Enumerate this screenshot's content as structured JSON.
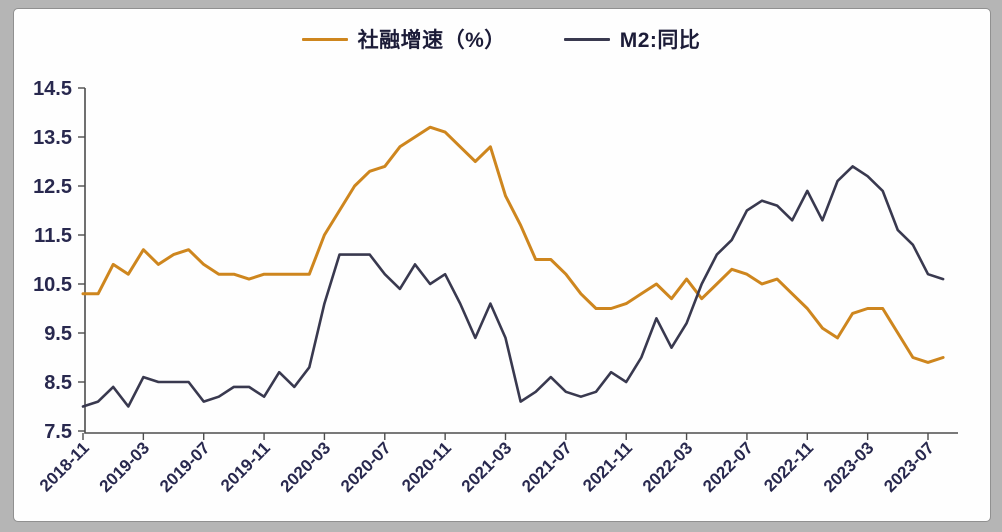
{
  "legend": {
    "items": [
      {
        "label": "社融增速（%）",
        "color": "#ce861e"
      },
      {
        "label": "M2:同比",
        "color": "#39394f"
      }
    ]
  },
  "colors": {
    "axis": "#4d4d4d",
    "tick_label": "#28284e",
    "outer_frame": "#b5b5b5",
    "panel_background": "#fefefe"
  },
  "chart_data": {
    "type": "line",
    "title": "",
    "xlabel": "",
    "ylabel": "",
    "ylim": [
      7.5,
      14.5
    ],
    "y_ticks": [
      7.5,
      8.5,
      9.5,
      10.5,
      11.5,
      12.5,
      13.5,
      14.5
    ],
    "x_tick_step": 4,
    "x_tick_labels": [
      "2018-11",
      "2019-03",
      "2019-07",
      "2019-11",
      "2020-03",
      "2020-07",
      "2020-11",
      "2021-03",
      "2021-07",
      "2021-11",
      "2022-03",
      "2022-07",
      "2022-11",
      "2023-03",
      "2023-07"
    ],
    "grid": false,
    "legend_position": "top-center",
    "x": [
      "2018-11",
      "2018-12",
      "2019-01",
      "2019-02",
      "2019-03",
      "2019-04",
      "2019-05",
      "2019-06",
      "2019-07",
      "2019-08",
      "2019-09",
      "2019-10",
      "2019-11",
      "2019-12",
      "2020-01",
      "2020-02",
      "2020-03",
      "2020-04",
      "2020-05",
      "2020-06",
      "2020-07",
      "2020-08",
      "2020-09",
      "2020-10",
      "2020-11",
      "2020-12",
      "2021-01",
      "2021-02",
      "2021-03",
      "2021-04",
      "2021-05",
      "2021-06",
      "2021-07",
      "2021-08",
      "2021-09",
      "2021-10",
      "2021-11",
      "2021-12",
      "2022-01",
      "2022-02",
      "2022-03",
      "2022-04",
      "2022-05",
      "2022-06",
      "2022-07",
      "2022-08",
      "2022-09",
      "2022-10",
      "2022-11",
      "2022-12",
      "2023-01",
      "2023-02",
      "2023-03",
      "2023-04",
      "2023-05",
      "2023-06",
      "2023-07",
      "2023-08"
    ],
    "series": [
      {
        "name": "社融增速（%）",
        "color": "#ce861e",
        "stroke_width": 3,
        "values": [
          10.3,
          10.3,
          10.9,
          10.7,
          11.2,
          10.9,
          11.1,
          11.2,
          10.9,
          10.7,
          10.7,
          10.6,
          10.7,
          10.7,
          10.7,
          10.7,
          11.5,
          12.0,
          12.5,
          12.8,
          12.9,
          13.3,
          13.5,
          13.7,
          13.6,
          13.3,
          13.0,
          13.3,
          12.3,
          11.7,
          11.0,
          11.0,
          10.7,
          10.3,
          10.0,
          10.0,
          10.1,
          10.3,
          10.5,
          10.2,
          10.6,
          10.2,
          10.5,
          10.8,
          10.7,
          10.5,
          10.6,
          10.3,
          10.0,
          9.6,
          9.4,
          9.9,
          10.0,
          10.0,
          9.5,
          9.0,
          8.9,
          9.0
        ]
      },
      {
        "name": "M2:同比",
        "color": "#39394f",
        "stroke_width": 2.6,
        "values": [
          8.0,
          8.1,
          8.4,
          8.0,
          8.6,
          8.5,
          8.5,
          8.5,
          8.1,
          8.2,
          8.4,
          8.4,
          8.2,
          8.7,
          8.4,
          8.8,
          10.1,
          11.1,
          11.1,
          11.1,
          10.7,
          10.4,
          10.9,
          10.5,
          10.7,
          10.1,
          9.4,
          10.1,
          9.4,
          8.1,
          8.3,
          8.6,
          8.3,
          8.2,
          8.3,
          8.7,
          8.5,
          9.0,
          9.8,
          9.2,
          9.7,
          10.5,
          11.1,
          11.4,
          12.0,
          12.2,
          12.1,
          11.8,
          12.4,
          11.8,
          12.6,
          12.9,
          12.7,
          12.4,
          11.6,
          11.3,
          10.7,
          10.6
        ]
      }
    ]
  }
}
